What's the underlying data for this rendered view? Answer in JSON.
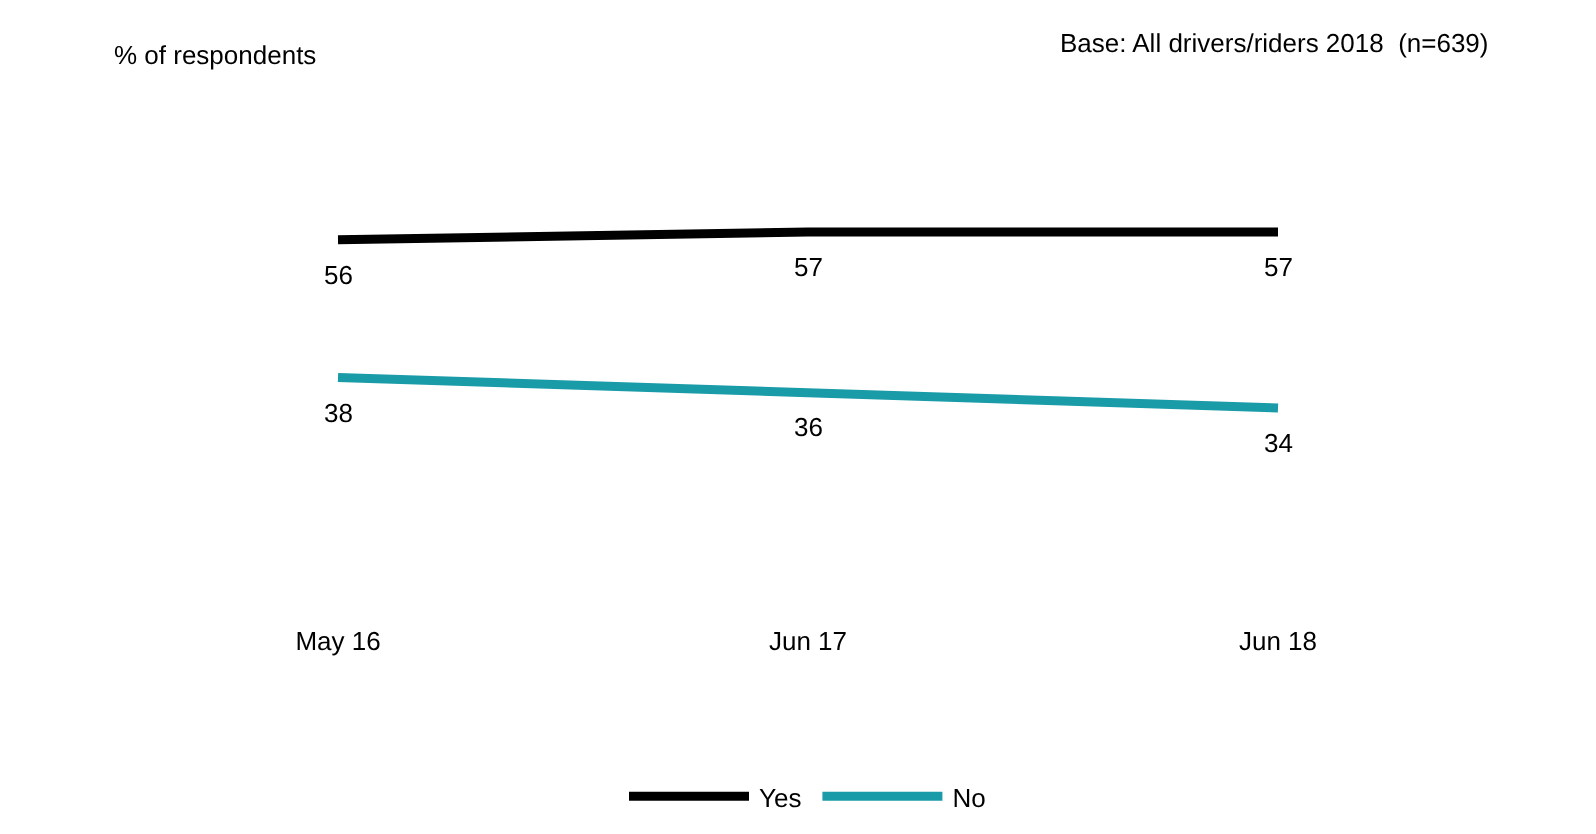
{
  "chart_data": {
    "type": "line",
    "annotations": [
      "% of respondents",
      "Base: All drivers/riders 2018  (n=639)"
    ],
    "categories": [
      "May 16",
      "Jun 17",
      "Jun 18"
    ],
    "series": [
      {
        "name": "Yes",
        "color": "#000000",
        "values": [
          56,
          57,
          57
        ]
      },
      {
        "name": "No",
        "color": "#1a9ba8",
        "values": [
          38,
          36,
          34
        ]
      }
    ],
    "tick_labels": "x",
    "data_labels": true,
    "grid": false,
    "legend": "bottom",
    "marker": "none",
    "line_style": "solid"
  }
}
